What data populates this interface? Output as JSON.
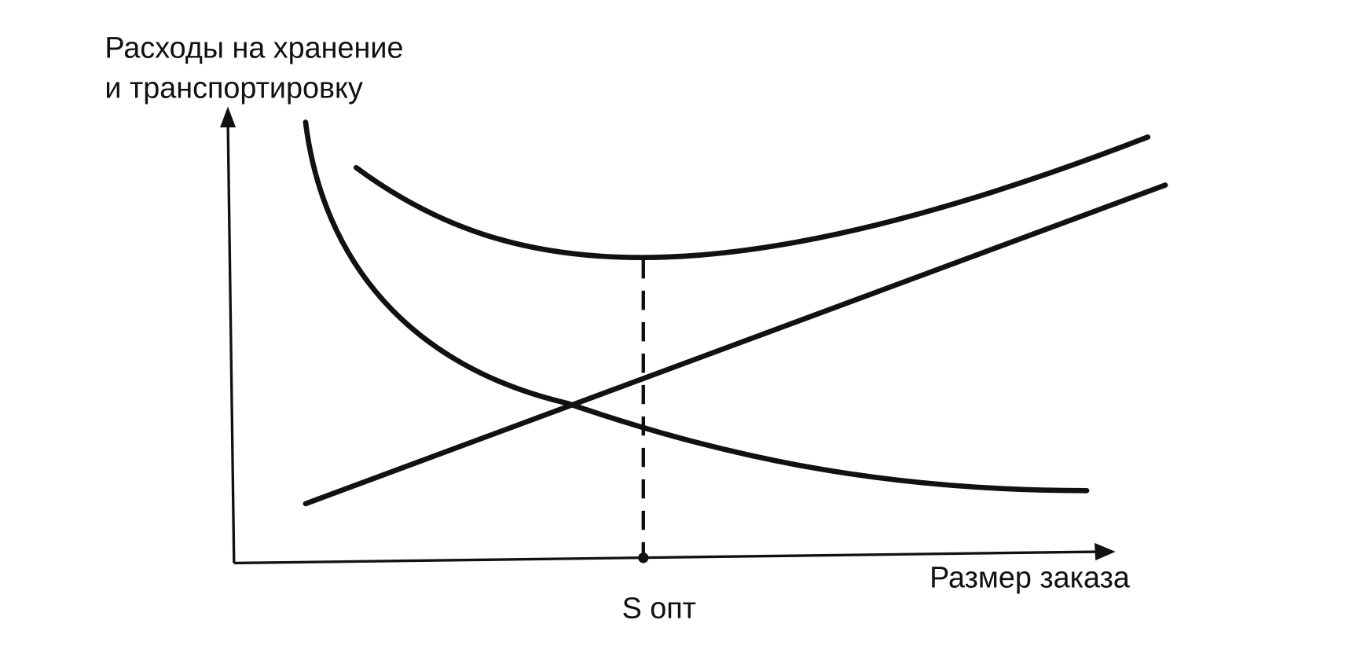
{
  "y_axis_label": [
    "Расходы на хранение",
    "и транспортировку"
  ],
  "x_axis_label": "Размер заказа",
  "point_label": "S опт"
}
